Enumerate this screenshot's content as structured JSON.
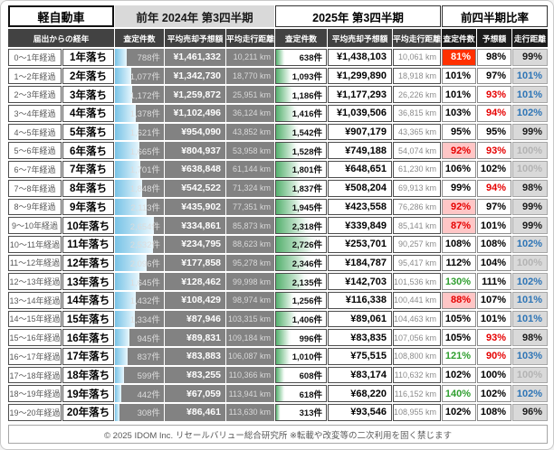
{
  "colors": {
    "prev-bg": "#828282",
    "prev-header-bg": "#d9d9d9",
    "subheader-bg": "#424242",
    "ratio-header-bg": "#1c1c1c",
    "bar-blue": "#79c3e6",
    "bar-green": "#55b06e",
    "alert-bg": "#ff3000",
    "bad-bg": "#ffc6c6",
    "bad-text": "#e60000",
    "good-text": "#2e9e2e",
    "up-text": "#2e75b6",
    "even-text": "#b3b3b3",
    "mileage-col-bg": "#d9d9d9"
  },
  "header": {
    "title": "軽自動車",
    "prev_period": "前年 2024年 第3四半期",
    "curr_period": "2025年 第3四半期",
    "ratio_title": "前四半期比率",
    "age_col": "届出からの経年",
    "count_col": "査定件数",
    "price_col": "平均売却予想額",
    "mileage_col": "平均走行距離",
    "ratio_count_col": "査定件数",
    "ratio_price_col": "予想額",
    "ratio_mileage_col": "走行距離"
  },
  "footer": "© 2025 IDOM Inc. リセールバリュー総合研究所 ※転載や改変等の二次利用を固く禁じます",
  "chart_data": {
    "type": "table",
    "title": "軽自動車 リセールバリュー四半期比較",
    "columns": [
      "届出からの経年",
      "年落ち",
      "2024査定件数",
      "2024平均売却予想額",
      "2024平均走行距離",
      "2025査定件数",
      "2025平均売却予想額",
      "2025平均走行距離",
      "比率:査定件数",
      "比率:予想額",
      "比率:走行距離"
    ],
    "rows": [
      {
        "age_range": "0〜1年経過",
        "age": "1年落ち",
        "prev": {
          "count": "788件",
          "price": "¥1,461,332",
          "mileage": "10,211 km"
        },
        "curr": {
          "count": "638件",
          "price": "¥1,438,103",
          "mileage": "10,061 km"
        },
        "ratio": {
          "count": "81%",
          "count_state": "alert",
          "price": "98%",
          "price_state": "normal",
          "mileage": "99%",
          "mileage_state": "normal"
        }
      },
      {
        "age_range": "1〜2年経過",
        "age": "2年落ち",
        "prev": {
          "count": "1,077件",
          "price": "¥1,342,730",
          "mileage": "18,770 km"
        },
        "curr": {
          "count": "1,093件",
          "price": "¥1,299,890",
          "mileage": "18,918 km"
        },
        "ratio": {
          "count": "101%",
          "count_state": "normal",
          "price": "97%",
          "price_state": "normal",
          "mileage": "101%",
          "mileage_state": "up"
        }
      },
      {
        "age_range": "2〜3年経過",
        "age": "3年落ち",
        "prev": {
          "count": "1,172件",
          "price": "¥1,259,872",
          "mileage": "25,951 km"
        },
        "curr": {
          "count": "1,186件",
          "price": "¥1,177,293",
          "mileage": "26,226 km"
        },
        "ratio": {
          "count": "101%",
          "count_state": "normal",
          "price": "93%",
          "price_state": "bad",
          "mileage": "101%",
          "mileage_state": "up"
        }
      },
      {
        "age_range": "3〜4年経過",
        "age": "4年落ち",
        "prev": {
          "count": "1,378件",
          "price": "¥1,102,496",
          "mileage": "36,124 km"
        },
        "curr": {
          "count": "1,416件",
          "price": "¥1,039,506",
          "mileage": "36,815 km"
        },
        "ratio": {
          "count": "103%",
          "count_state": "normal",
          "price": "94%",
          "price_state": "bad",
          "mileage": "102%",
          "mileage_state": "up"
        }
      },
      {
        "age_range": "4〜5年経過",
        "age": "5年落ち",
        "prev": {
          "count": "1,621件",
          "price": "¥954,090",
          "mileage": "43,852 km"
        },
        "curr": {
          "count": "1,542件",
          "price": "¥907,179",
          "mileage": "43,365 km"
        },
        "ratio": {
          "count": "95%",
          "count_state": "normal",
          "price": "95%",
          "price_state": "normal",
          "mileage": "99%",
          "mileage_state": "normal"
        }
      },
      {
        "age_range": "5〜6年経過",
        "age": "6年落ち",
        "prev": {
          "count": "1,665件",
          "price": "¥804,937",
          "mileage": "53,958 km"
        },
        "curr": {
          "count": "1,528件",
          "price": "¥749,188",
          "mileage": "54,074 km"
        },
        "ratio": {
          "count": "92%",
          "count_state": "bad",
          "price": "93%",
          "price_state": "bad",
          "mileage": "100%",
          "mileage_state": "even"
        }
      },
      {
        "age_range": "6〜7年経過",
        "age": "7年落ち",
        "prev": {
          "count": "1,701件",
          "price": "¥638,848",
          "mileage": "61,144 km"
        },
        "curr": {
          "count": "1,801件",
          "price": "¥648,651",
          "mileage": "61,230 km"
        },
        "ratio": {
          "count": "106%",
          "count_state": "normal",
          "price": "102%",
          "price_state": "normal",
          "mileage": "100%",
          "mileage_state": "even"
        }
      },
      {
        "age_range": "7〜8年経過",
        "age": "8年落ち",
        "prev": {
          "count": "1,848件",
          "price": "¥542,522",
          "mileage": "71,324 km"
        },
        "curr": {
          "count": "1,837件",
          "price": "¥508,204",
          "mileage": "69,913 km"
        },
        "ratio": {
          "count": "99%",
          "count_state": "normal",
          "price": "94%",
          "price_state": "bad",
          "mileage": "98%",
          "mileage_state": "normal"
        }
      },
      {
        "age_range": "8〜9年経過",
        "age": "9年落ち",
        "prev": {
          "count": "2,113件",
          "price": "¥435,902",
          "mileage": "77,351 km"
        },
        "curr": {
          "count": "1,945件",
          "price": "¥423,558",
          "mileage": "76,286 km"
        },
        "ratio": {
          "count": "92%",
          "count_state": "bad",
          "price": "97%",
          "price_state": "normal",
          "mileage": "99%",
          "mileage_state": "normal"
        }
      },
      {
        "age_range": "9〜10年経過",
        "age": "10年落ち",
        "prev": {
          "count": "2,654件",
          "price": "¥334,861",
          "mileage": "85,873 km"
        },
        "curr": {
          "count": "2,318件",
          "price": "¥339,849",
          "mileage": "85,141 km"
        },
        "ratio": {
          "count": "87%",
          "count_state": "bad",
          "price": "101%",
          "price_state": "normal",
          "mileage": "99%",
          "mileage_state": "normal"
        }
      },
      {
        "age_range": "10〜11年経過",
        "age": "11年落ち",
        "prev": {
          "count": "2,532件",
          "price": "¥234,795",
          "mileage": "88,623 km"
        },
        "curr": {
          "count": "2,726件",
          "price": "¥253,701",
          "mileage": "90,257 km"
        },
        "ratio": {
          "count": "108%",
          "count_state": "normal",
          "price": "108%",
          "price_state": "normal",
          "mileage": "102%",
          "mileage_state": "up"
        }
      },
      {
        "age_range": "11〜12年経過",
        "age": "12年落ち",
        "prev": {
          "count": "2,096件",
          "price": "¥177,858",
          "mileage": "95,278 km"
        },
        "curr": {
          "count": "2,346件",
          "price": "¥184,787",
          "mileage": "95,417 km"
        },
        "ratio": {
          "count": "112%",
          "count_state": "normal",
          "price": "104%",
          "price_state": "normal",
          "mileage": "100%",
          "mileage_state": "even"
        }
      },
      {
        "age_range": "12〜13年経過",
        "age": "13年落ち",
        "prev": {
          "count": "1,645件",
          "price": "¥128,462",
          "mileage": "99,998 km"
        },
        "curr": {
          "count": "2,135件",
          "price": "¥142,703",
          "mileage": "101,536 km"
        },
        "ratio": {
          "count": "130%",
          "count_state": "good",
          "price": "111%",
          "price_state": "normal",
          "mileage": "102%",
          "mileage_state": "up"
        }
      },
      {
        "age_range": "13〜14年経過",
        "age": "14年落ち",
        "prev": {
          "count": "1,432件",
          "price": "¥108,429",
          "mileage": "98,974 km"
        },
        "curr": {
          "count": "1,256件",
          "price": "¥116,338",
          "mileage": "100,441 km"
        },
        "ratio": {
          "count": "88%",
          "count_state": "bad",
          "price": "107%",
          "price_state": "normal",
          "mileage": "101%",
          "mileage_state": "up"
        }
      },
      {
        "age_range": "14〜15年経過",
        "age": "15年落ち",
        "prev": {
          "count": "1,334件",
          "price": "¥87,946",
          "mileage": "103,315 km"
        },
        "curr": {
          "count": "1,406件",
          "price": "¥89,061",
          "mileage": "104,463 km"
        },
        "ratio": {
          "count": "105%",
          "count_state": "normal",
          "price": "101%",
          "price_state": "normal",
          "mileage": "101%",
          "mileage_state": "up"
        }
      },
      {
        "age_range": "15〜16年経過",
        "age": "16年落ち",
        "prev": {
          "count": "945件",
          "price": "¥89,831",
          "mileage": "109,184 km"
        },
        "curr": {
          "count": "996件",
          "price": "¥83,835",
          "mileage": "107,056 km"
        },
        "ratio": {
          "count": "105%",
          "count_state": "normal",
          "price": "93%",
          "price_state": "bad",
          "mileage": "98%",
          "mileage_state": "normal"
        }
      },
      {
        "age_range": "16〜17年経過",
        "age": "17年落ち",
        "prev": {
          "count": "837件",
          "price": "¥83,883",
          "mileage": "106,087 km"
        },
        "curr": {
          "count": "1,010件",
          "price": "¥75,515",
          "mileage": "108,800 km"
        },
        "ratio": {
          "count": "121%",
          "count_state": "good",
          "price": "90%",
          "price_state": "bad",
          "mileage": "103%",
          "mileage_state": "up"
        }
      },
      {
        "age_range": "17〜18年経過",
        "age": "18年落ち",
        "prev": {
          "count": "599件",
          "price": "¥83,255",
          "mileage": "110,366 km"
        },
        "curr": {
          "count": "608件",
          "price": "¥83,174",
          "mileage": "110,632 km"
        },
        "ratio": {
          "count": "102%",
          "count_state": "normal",
          "price": "100%",
          "price_state": "normal",
          "mileage": "100%",
          "mileage_state": "even"
        }
      },
      {
        "age_range": "18〜19年経過",
        "age": "19年落ち",
        "prev": {
          "count": "442件",
          "price": "¥67,059",
          "mileage": "113,941 km"
        },
        "curr": {
          "count": "618件",
          "price": "¥68,220",
          "mileage": "116,152 km"
        },
        "ratio": {
          "count": "140%",
          "count_state": "good",
          "price": "102%",
          "price_state": "normal",
          "mileage": "102%",
          "mileage_state": "up"
        }
      },
      {
        "age_range": "19〜20年経過",
        "age": "20年落ち",
        "prev": {
          "count": "308件",
          "price": "¥86,461",
          "mileage": "113,630 km"
        },
        "curr": {
          "count": "313件",
          "price": "¥93,546",
          "mileage": "108,955 km"
        },
        "ratio": {
          "count": "102%",
          "count_state": "normal",
          "price": "108%",
          "price_state": "normal",
          "mileage": "96%",
          "mileage_state": "normal"
        }
      }
    ]
  }
}
